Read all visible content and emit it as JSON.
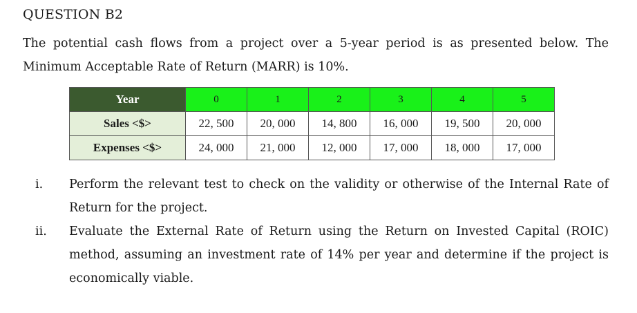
{
  "question": {
    "title": "QUESTION B2",
    "intro": "The potential cash flows from a project over a 5-year period is as presented below. The Minimum Acceptable Rate of Return (MARR) is 10%."
  },
  "table": {
    "header_label": "Year",
    "years": [
      "0",
      "1",
      "2",
      "3",
      "4",
      "5"
    ],
    "rows": [
      {
        "label": "Sales <$>",
        "values": [
          "22, 500",
          "20, 000",
          "14, 800",
          "16, 000",
          "19, 500",
          "20, 000"
        ]
      },
      {
        "label": "Expenses <$>",
        "values": [
          "24, 000",
          "21, 000",
          "12, 000",
          "17, 000",
          "18, 000",
          "17, 000"
        ]
      }
    ],
    "colors": {
      "header_label_bg": "#3b5a2f",
      "header_years_bg": "#19f119",
      "row_label_bg": "#e4efd9"
    }
  },
  "items": [
    {
      "num": "i.",
      "text": "Perform the relevant test to check on the validity or otherwise of the Internal Rate of Return for the project."
    },
    {
      "num": "ii.",
      "text": "Evaluate the External Rate of Return using the Return on Invested Capital (ROIC) method, assuming an investment rate of 14% per year and determine if the project is economically viable."
    }
  ]
}
